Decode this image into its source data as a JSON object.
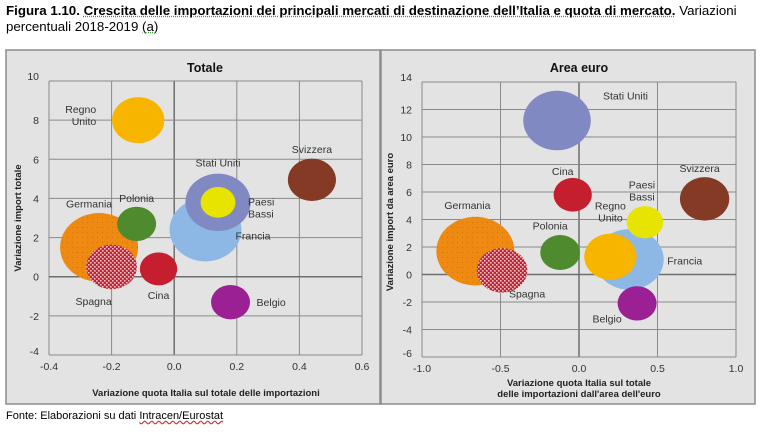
{
  "caption": {
    "figure_number": "Figura 1.10.",
    "title": "Crescita delle importazioni dei principali mercati di destinazione dell’Italia e quota di mercato.",
    "subtitle": "Variazioni percentuali 2018-2019",
    "note_ref": "(a)"
  },
  "source": {
    "prefix": "Fonte: Elaborazioni su dati ",
    "name": "Intracen/Eurostat"
  },
  "colors": {
    "Regno Unito": "#f7b500",
    "Polonia": "#4e8a2e",
    "Germania": "#ee8a12",
    "Spagna": "#c8202f",
    "Cina": "#c41e2f",
    "Francia": "#8db8e6",
    "Stati Uniti": "#8189c2",
    "Paesi Bassi": "#e6e400",
    "Svizzera": "#843a25",
    "Belgio": "#9b2094"
  },
  "chart_data": [
    {
      "type": "scatter",
      "subtype": "bubble",
      "title": "Totale",
      "xlabel": "Variazione quota Italia sul totale delle importazioni",
      "ylabel": "Variazione import totale",
      "xlim": [
        -0.4,
        0.6
      ],
      "ylim": [
        -4,
        10
      ],
      "xticks": [
        "-0.4",
        "-0.2",
        "0.0",
        "0.2",
        "0.4",
        "0.6"
      ],
      "yticks": [
        "-4",
        "-2",
        "0",
        "2",
        "4",
        "6",
        "8",
        "10"
      ],
      "grid": true,
      "points": [
        {
          "name": "Germania",
          "label": "Germania",
          "x": -0.24,
          "y": 1.5,
          "size": 100,
          "pattern": "dotted"
        },
        {
          "name": "Francia",
          "label": "Francia",
          "x": 0.1,
          "y": 2.4,
          "size": 85
        },
        {
          "name": "Stati Uniti",
          "label": "Stati Uniti",
          "x": 0.14,
          "y": 3.8,
          "size": 70
        },
        {
          "name": "Regno Unito",
          "label": "Regno Unito",
          "x": -0.115,
          "y": 8.0,
          "size": 45
        },
        {
          "name": "Spagna",
          "label": "Spagna",
          "x": -0.2,
          "y": 0.5,
          "size": 42,
          "pattern": "checker"
        },
        {
          "name": "Svizzera",
          "label": "Svizzera",
          "x": 0.44,
          "y": 4.95,
          "size": 38
        },
        {
          "name": "Polonia",
          "label": "Polonia",
          "x": -0.12,
          "y": 2.7,
          "size": 25
        },
        {
          "name": "Cina",
          "label": "Cina",
          "x": -0.05,
          "y": 0.4,
          "size": 23
        },
        {
          "name": "Belgio",
          "label": "Belgio",
          "x": 0.18,
          "y": -1.3,
          "size": 25
        },
        {
          "name": "Paesi Bassi",
          "label": "Paesi Bassi",
          "x": 0.14,
          "y": 3.8,
          "size": 20
        }
      ]
    },
    {
      "type": "scatter",
      "subtype": "bubble",
      "title": "Area euro",
      "xlabel": "Variazione quota Italia sul totale delle importazioni dall'area dell'euro",
      "xlabel_lines": [
        "Variazione quota Italia sul totale",
        "delle importazioni dall'area dell'euro"
      ],
      "ylabel": "Variazione import da area euro",
      "xlim": [
        -1.0,
        1.0
      ],
      "ylim": [
        -6,
        14
      ],
      "xticks": [
        "-1.0",
        "-0.5",
        "0.0",
        "0.5",
        "1.0"
      ],
      "yticks": [
        "-6",
        "-4",
        "-2",
        "0",
        "2",
        "4",
        "6",
        "8",
        "10",
        "12",
        "14"
      ],
      "grid": true,
      "points": [
        {
          "name": "Germania",
          "label": "Germania",
          "x": -0.66,
          "y": 1.7,
          "size": 100,
          "pattern": "dotted"
        },
        {
          "name": "Stati Uniti",
          "label": "Stati Uniti",
          "x": -0.14,
          "y": 11.2,
          "size": 75
        },
        {
          "name": "Francia",
          "label": "Francia",
          "x": 0.32,
          "y": 1.1,
          "size": 78
        },
        {
          "name": "Regno Unito",
          "label": "Regno Unito",
          "x": 0.2,
          "y": 1.3,
          "size": 45
        },
        {
          "name": "Spagna",
          "label": "Spagna",
          "x": -0.49,
          "y": 0.3,
          "size": 42,
          "pattern": "checker"
        },
        {
          "name": "Svizzera",
          "label": "Svizzera",
          "x": 0.8,
          "y": 5.5,
          "size": 40
        },
        {
          "name": "Polonia",
          "label": "Polonia",
          "x": -0.12,
          "y": 1.6,
          "size": 26
        },
        {
          "name": "Cina",
          "label": "Cina",
          "x": -0.04,
          "y": 5.8,
          "size": 24
        },
        {
          "name": "Paesi Bassi",
          "label": "Paesi Bassi",
          "x": 0.42,
          "y": 3.8,
          "size": 22
        },
        {
          "name": "Belgio",
          "label": "Belgio",
          "x": 0.37,
          "y": -2.1,
          "size": 25
        }
      ]
    }
  ]
}
